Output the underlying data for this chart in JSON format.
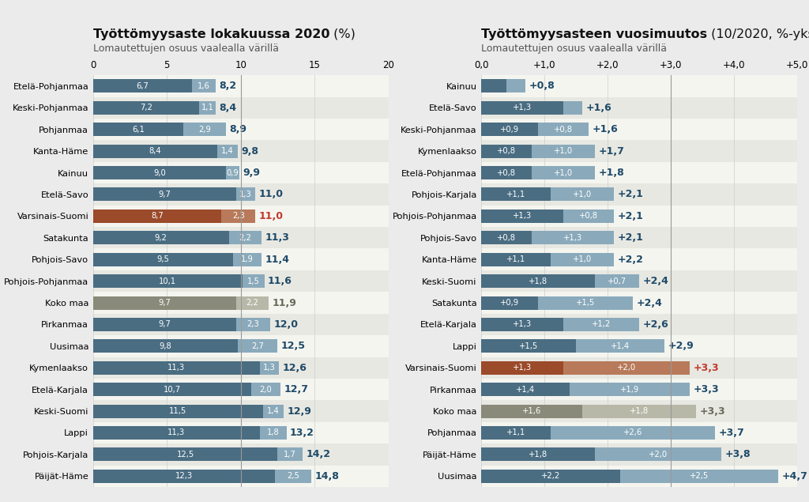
{
  "left_chart": {
    "title_bold": "Työttömyysaste lokakuussa 2020",
    "title_normal": " (%)",
    "subtitle": "Lomautettujen osuus vaalealla värillä",
    "xlim": [
      0,
      20
    ],
    "xticks": [
      0,
      5,
      10,
      15,
      20
    ],
    "xticklabels": [
      "0",
      "5",
      "10",
      "15",
      "20"
    ],
    "regions": [
      {
        "name": "Etelä-Pohjanmaa",
        "base": 6.7,
        "light": 1.6,
        "total": "8,2",
        "highlight": false,
        "koko_maa": false
      },
      {
        "name": "Keski-Pohjanmaa",
        "base": 7.2,
        "light": 1.1,
        "total": "8,4",
        "highlight": false,
        "koko_maa": false
      },
      {
        "name": "Pohjanmaa",
        "base": 6.1,
        "light": 2.9,
        "total": "8,9",
        "highlight": false,
        "koko_maa": false
      },
      {
        "name": "Kanta-Häme",
        "base": 8.4,
        "light": 1.4,
        "total": "9,8",
        "highlight": false,
        "koko_maa": false
      },
      {
        "name": "Kainuu",
        "base": 9.0,
        "light": 0.9,
        "total": "9,9",
        "highlight": false,
        "koko_maa": false
      },
      {
        "name": "Etelä-Savo",
        "base": 9.7,
        "light": 1.3,
        "total": "11,0",
        "highlight": false,
        "koko_maa": false
      },
      {
        "name": "Varsinais-Suomi",
        "base": 8.7,
        "light": 2.3,
        "total": "11,0",
        "highlight": true,
        "koko_maa": false
      },
      {
        "name": "Satakunta",
        "base": 9.2,
        "light": 2.2,
        "total": "11,3",
        "highlight": false,
        "koko_maa": false
      },
      {
        "name": "Pohjois-Savo",
        "base": 9.5,
        "light": 1.9,
        "total": "11,4",
        "highlight": false,
        "koko_maa": false
      },
      {
        "name": "Pohjois-Pohjanmaa",
        "base": 10.1,
        "light": 1.5,
        "total": "11,6",
        "highlight": false,
        "koko_maa": false
      },
      {
        "name": "Koko maa",
        "base": 9.7,
        "light": 2.2,
        "total": "11,9",
        "highlight": false,
        "koko_maa": true
      },
      {
        "name": "Pirkanmaa",
        "base": 9.7,
        "light": 2.3,
        "total": "12,0",
        "highlight": false,
        "koko_maa": false
      },
      {
        "name": "Uusimaa",
        "base": 9.8,
        "light": 2.7,
        "total": "12,5",
        "highlight": false,
        "koko_maa": false
      },
      {
        "name": "Kymenlaakso",
        "base": 11.3,
        "light": 1.3,
        "total": "12,6",
        "highlight": false,
        "koko_maa": false
      },
      {
        "name": "Etelä-Karjala",
        "base": 10.7,
        "light": 2.0,
        "total": "12,7",
        "highlight": false,
        "koko_maa": false
      },
      {
        "name": "Keski-Suomi",
        "base": 11.5,
        "light": 1.4,
        "total": "12,9",
        "highlight": false,
        "koko_maa": false
      },
      {
        "name": "Lappi",
        "base": 11.3,
        "light": 1.8,
        "total": "13,2",
        "highlight": false,
        "koko_maa": false
      },
      {
        "name": "Pohjois-Karjala",
        "base": 12.5,
        "light": 1.7,
        "total": "14,2",
        "highlight": false,
        "koko_maa": false
      },
      {
        "name": "Päijät-Häme",
        "base": 12.3,
        "light": 2.5,
        "total": "14,8",
        "highlight": false,
        "koko_maa": false
      }
    ],
    "color_dark_normal": "#4a6d82",
    "color_light_normal": "#8aaabb",
    "color_dark_highlight": "#9b4a2a",
    "color_light_highlight": "#b87a5a",
    "color_dark_kokomaa": "#8a8a7a",
    "color_light_kokomaa": "#b8b8a8",
    "color_total_normal": "#1e4a68",
    "color_total_highlight": "#c0392b",
    "color_total_kokomaa": "#6a6a5a",
    "ref_line": 10
  },
  "right_chart": {
    "title_bold": "Työttömyysasteen vuosimuutos",
    "title_normal": " (10/2020, %-yks.)",
    "subtitle": "Lomautettujen osuus vaalealla värillä",
    "xlim": [
      0,
      5.0
    ],
    "xticks": [
      0,
      1.0,
      2.0,
      3.0,
      4.0,
      5.0
    ],
    "xticklabels": [
      "0,0",
      "+1,0",
      "+2,0",
      "+3,0",
      "+4,0",
      "+5,0"
    ],
    "regions": [
      {
        "name": "Kainuu",
        "base": 0.4,
        "light": 0.3,
        "total": "+0,8",
        "highlight": false,
        "koko_maa": false
      },
      {
        "name": "Etelä-Savo",
        "base": 1.3,
        "light": 0.3,
        "total": "+1,6",
        "highlight": false,
        "koko_maa": false
      },
      {
        "name": "Keski-Pohjanmaa",
        "base": 0.9,
        "light": 0.8,
        "total": "+1,6",
        "highlight": false,
        "koko_maa": false
      },
      {
        "name": "Kymenlaakso",
        "base": 0.8,
        "light": 1.0,
        "total": "+1,7",
        "highlight": false,
        "koko_maa": false
      },
      {
        "name": "Etelä-Pohjanmaa",
        "base": 0.8,
        "light": 1.0,
        "total": "+1,8",
        "highlight": false,
        "koko_maa": false
      },
      {
        "name": "Pohjois-Karjala",
        "base": 1.1,
        "light": 1.0,
        "total": "+2,1",
        "highlight": false,
        "koko_maa": false
      },
      {
        "name": "Pohjois-Pohjanmaa",
        "base": 1.3,
        "light": 0.8,
        "total": "+2,1",
        "highlight": false,
        "koko_maa": false
      },
      {
        "name": "Pohjois-Savo",
        "base": 0.8,
        "light": 1.3,
        "total": "+2,1",
        "highlight": false,
        "koko_maa": false
      },
      {
        "name": "Kanta-Häme",
        "base": 1.1,
        "light": 1.0,
        "total": "+2,2",
        "highlight": false,
        "koko_maa": false
      },
      {
        "name": "Keski-Suomi",
        "base": 1.8,
        "light": 0.7,
        "total": "+2,4",
        "highlight": false,
        "koko_maa": false
      },
      {
        "name": "Satakunta",
        "base": 0.9,
        "light": 1.5,
        "total": "+2,4",
        "highlight": false,
        "koko_maa": false
      },
      {
        "name": "Etelä-Karjala",
        "base": 1.3,
        "light": 1.2,
        "total": "+2,6",
        "highlight": false,
        "koko_maa": false
      },
      {
        "name": "Lappi",
        "base": 1.5,
        "light": 1.4,
        "total": "+2,9",
        "highlight": false,
        "koko_maa": false
      },
      {
        "name": "Varsinais-Suomi",
        "base": 1.3,
        "light": 2.0,
        "total": "+3,3",
        "highlight": true,
        "koko_maa": false
      },
      {
        "name": "Pirkanmaa",
        "base": 1.4,
        "light": 1.9,
        "total": "+3,3",
        "highlight": false,
        "koko_maa": false
      },
      {
        "name": "Koko maa",
        "base": 1.6,
        "light": 1.8,
        "total": "+3,3",
        "highlight": false,
        "koko_maa": true
      },
      {
        "name": "Pohjanmaa",
        "base": 1.1,
        "light": 2.6,
        "total": "+3,7",
        "highlight": false,
        "koko_maa": false
      },
      {
        "name": "Päijät-Häme",
        "base": 1.8,
        "light": 2.0,
        "total": "+3,8",
        "highlight": false,
        "koko_maa": false
      },
      {
        "name": "Uusimaa",
        "base": 2.2,
        "light": 2.5,
        "total": "+4,7",
        "highlight": false,
        "koko_maa": false
      }
    ],
    "color_dark_normal": "#4a6d82",
    "color_light_normal": "#8aaabb",
    "color_dark_highlight": "#9b4a2a",
    "color_light_highlight": "#b87a5a",
    "color_dark_kokomaa": "#8a8a7a",
    "color_light_kokomaa": "#b8b8a8",
    "color_total_normal": "#1e4a68",
    "color_total_highlight": "#c0392b",
    "color_total_kokomaa": "#6a6a5a",
    "ref_line": 3.0
  },
  "bg_color": "#ebebeb",
  "row_even_color": "#f5f5f0",
  "row_odd_color": "#e8e8e2"
}
